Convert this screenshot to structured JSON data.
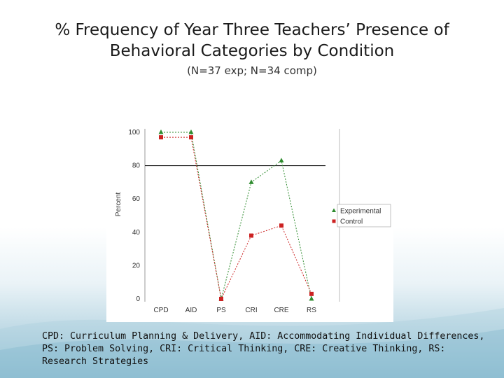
{
  "slide": {
    "title_line1": "% Frequency of Year Three Teachers’ Presence of",
    "title_line2": "Behavioral Categories by Condition",
    "subtitle": "(N=37 exp; N=34 comp)",
    "footnote": "CPD: Curriculum Planning & Delivery, AID: Accommodating Individual Differences, PS: Problem Solving, CRI: Critical Thinking, CRE: Creative Thinking, RS: Research Strategies"
  },
  "chart_data": {
    "type": "line",
    "title": "",
    "xlabel": "",
    "ylabel": "Percent",
    "categories": [
      "CPD",
      "AID",
      "PS",
      "CRI",
      "CRE",
      "RS"
    ],
    "ylim": [
      0,
      100
    ],
    "yticks": [
      0,
      20,
      40,
      60,
      80,
      100
    ],
    "reference_line": 80,
    "grid": false,
    "legend_position": "right",
    "series": [
      {
        "name": "Experimental",
        "values": [
          100,
          100,
          0,
          70,
          83,
          0
        ],
        "color": "#2e8b2e",
        "marker": "triangle"
      },
      {
        "name": "Control",
        "values": [
          97,
          97,
          0,
          38,
          44,
          3
        ],
        "color": "#cc2222",
        "marker": "square"
      }
    ]
  }
}
